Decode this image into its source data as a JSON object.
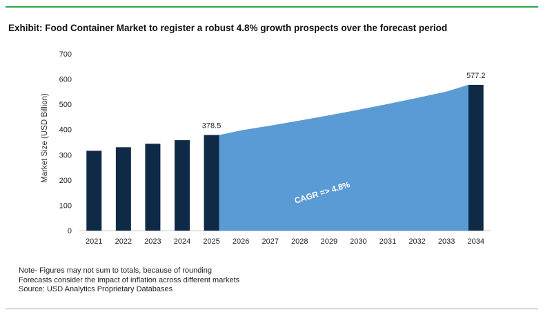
{
  "title": "Exhibit: Food Container Market to register a robust 4.8% growth prospects over the forecast period",
  "notes": [
    "Note- Figures may not sum to totals, because of rounding",
    "Forecasts consider the impact of inflation across different markets",
    "Source: USD Analytics Proprietary Databases"
  ],
  "colors": {
    "bar": "#0e2a47",
    "area": "#5b9bd5",
    "title_rule": "#2bab4a"
  },
  "chart_data": {
    "type": "bar",
    "categories": [
      "2021",
      "2022",
      "2023",
      "2024",
      "2025",
      "2026",
      "2027",
      "2028",
      "2029",
      "2030",
      "2031",
      "2032",
      "2033",
      "2034"
    ],
    "series": [
      {
        "values": [
          316,
          330,
          344,
          358,
          378.5,
          null,
          null,
          null,
          null,
          null,
          null,
          null,
          null,
          577.2
        ]
      }
    ],
    "area": {
      "x": [
        "2025",
        "2026",
        "2027",
        "2028",
        "2029",
        "2030",
        "2031",
        "2032",
        "2033",
        "2034"
      ],
      "values": [
        378.5,
        396.7,
        415.7,
        435.7,
        456.6,
        478.5,
        501.5,
        525.6,
        550.8,
        577.2
      ]
    },
    "data_labels": {
      "2025": "378.5",
      "2034": "577.2"
    },
    "annotation": "CAGR => 4.8%",
    "ylabel": "Market Size (USD Billion)",
    "xlabel": "",
    "yticks": [
      0,
      100,
      200,
      300,
      400,
      500,
      600,
      700
    ],
    "ylim": [
      0,
      700
    ],
    "grid": false,
    "legend": "none"
  }
}
